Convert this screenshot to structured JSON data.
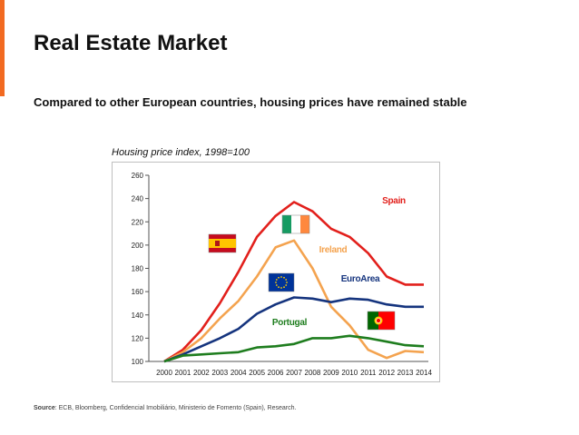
{
  "slide": {
    "title": "Real Estate Market",
    "subtitle": "Compared to other European countries, housing prices have remained stable",
    "source_label": "Source",
    "source_text": ": ECB, Bloomberg, Confidencial Imobiliário, Ministerio de Fomento (Spain), Research."
  },
  "colors": {
    "accent": "#f26a21",
    "spain": "#e2201c",
    "ireland": "#f4a34f",
    "euro_area": "#15347e",
    "portugal": "#1e7d1e"
  },
  "icons": [
    "spain-flag-icon",
    "ireland-flag-icon",
    "eu-flag-icon",
    "portugal-flag-icon"
  ],
  "chart_data": {
    "type": "line",
    "title": "Housing price index, 1998=100",
    "xlabel": "",
    "ylabel": "",
    "ylim": [
      100,
      260
    ],
    "yticks": [
      100,
      120,
      140,
      160,
      180,
      200,
      220,
      240,
      260
    ],
    "grid": false,
    "x": [
      "2000",
      "2001",
      "2002",
      "2003",
      "2004",
      "2005",
      "2006",
      "2007",
      "2008",
      "2009",
      "2010",
      "2011",
      "2012",
      "2013",
      "2014"
    ],
    "series": [
      {
        "name": "Spain",
        "color": "#e2201c",
        "values": [
          100,
          110,
          127,
          150,
          177,
          207,
          225,
          237,
          229,
          214,
          207,
          193,
          173,
          166,
          166
        ]
      },
      {
        "name": "Ireland",
        "color": "#f4a34f",
        "values": [
          100,
          108,
          120,
          137,
          152,
          173,
          198,
          204,
          180,
          147,
          131,
          110,
          103,
          109,
          108
        ]
      },
      {
        "name": "EuroArea",
        "color": "#15347e",
        "values": [
          100,
          106,
          113,
          120,
          128,
          141,
          149,
          155,
          154,
          151,
          154,
          153,
          149,
          147,
          147
        ]
      },
      {
        "name": "Portugal",
        "color": "#1e7d1e",
        "values": [
          100,
          105,
          106,
          107,
          108,
          112,
          113,
          115,
          120,
          120,
          122,
          120,
          117,
          114,
          113
        ]
      }
    ]
  }
}
